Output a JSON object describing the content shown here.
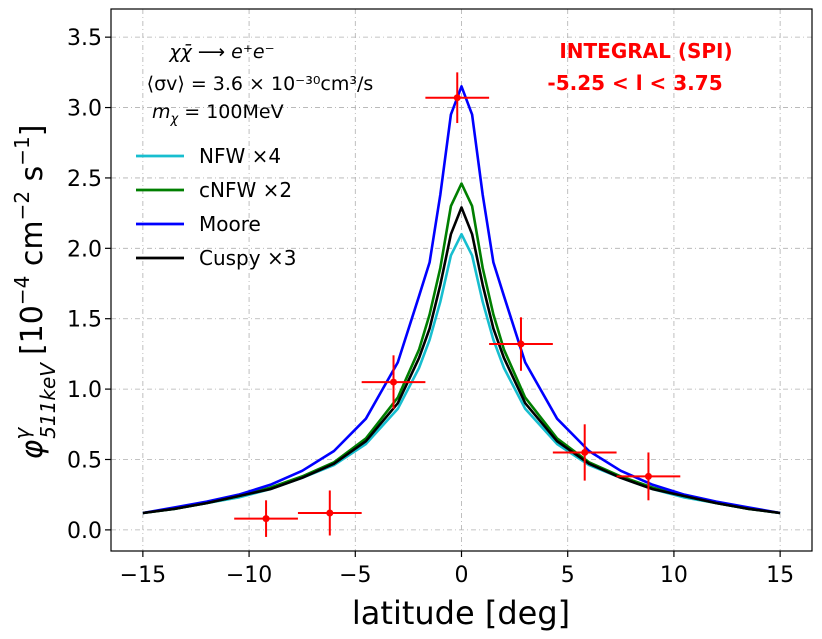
{
  "chart_data": {
    "type": "line",
    "title": "",
    "xlabel": "latitude [deg]",
    "ylabel": "φ^γ_511keV [10^-4 cm^-2 s^-1]",
    "ylabel_parts": {
      "symbol": "φ",
      "sup": "γ",
      "sub": "511keV",
      "unit": "[10",
      "exp1": "−4",
      "mid": " cm",
      "exp2": "−2",
      "mid2": " s",
      "exp3": "−1",
      "end": "]"
    },
    "xlim": [
      -16.5,
      16.5
    ],
    "ylim": [
      -0.15,
      3.7
    ],
    "grid": true,
    "xticks": [
      -15,
      -10,
      -5,
      0,
      5,
      10,
      15
    ],
    "yticks": [
      0.0,
      0.5,
      1.0,
      1.5,
      2.0,
      2.5,
      3.0,
      3.5
    ],
    "xtick_labels": [
      "−15",
      "−10",
      "−5",
      "0",
      "5",
      "10",
      "15"
    ],
    "ytick_labels": [
      "0.0",
      "0.5",
      "1.0",
      "1.5",
      "2.0",
      "2.5",
      "3.0",
      "3.5"
    ],
    "x": [
      -15,
      -13.5,
      -12,
      -10.5,
      -9,
      -7.5,
      -6,
      -4.5,
      -3,
      -2,
      -1.5,
      -1,
      -0.5,
      0,
      0.5,
      1,
      1.5,
      2,
      3,
      4.5,
      6,
      7.5,
      9,
      10.5,
      12,
      13.5,
      15
    ],
    "series": [
      {
        "name": "NFW ×4",
        "color": "#17becf",
        "values": [
          0.12,
          0.15,
          0.19,
          0.23,
          0.29,
          0.37,
          0.46,
          0.61,
          0.86,
          1.15,
          1.35,
          1.62,
          1.95,
          2.1,
          1.95,
          1.62,
          1.35,
          1.15,
          0.86,
          0.61,
          0.46,
          0.37,
          0.29,
          0.23,
          0.19,
          0.15,
          0.12
        ]
      },
      {
        "name": "cNFW ×2",
        "color": "#007f00",
        "values": [
          0.12,
          0.15,
          0.19,
          0.24,
          0.3,
          0.38,
          0.48,
          0.65,
          0.94,
          1.28,
          1.53,
          1.86,
          2.3,
          2.46,
          2.3,
          1.86,
          1.53,
          1.28,
          0.94,
          0.65,
          0.48,
          0.38,
          0.3,
          0.24,
          0.19,
          0.15,
          0.12
        ]
      },
      {
        "name": "Moore",
        "color": "#0000ff",
        "values": [
          0.12,
          0.16,
          0.2,
          0.25,
          0.32,
          0.42,
          0.56,
          0.79,
          1.19,
          1.66,
          1.9,
          2.38,
          2.95,
          3.15,
          2.95,
          2.38,
          1.9,
          1.66,
          1.19,
          0.79,
          0.56,
          0.42,
          0.32,
          0.25,
          0.2,
          0.16,
          0.12
        ]
      },
      {
        "name": "Cuspy ×3",
        "color": "#000000",
        "values": [
          0.12,
          0.15,
          0.19,
          0.24,
          0.29,
          0.37,
          0.47,
          0.63,
          0.9,
          1.22,
          1.43,
          1.74,
          2.1,
          2.29,
          2.1,
          1.74,
          1.43,
          1.22,
          0.9,
          0.63,
          0.47,
          0.37,
          0.29,
          0.24,
          0.19,
          0.15,
          0.12
        ]
      }
    ],
    "data_points": {
      "name": "INTEGRAL (SPI)",
      "color": "#ff0000",
      "points": [
        {
          "x": -9.2,
          "y": 0.08,
          "xerr": 1.5,
          "yerr": 0.13
        },
        {
          "x": -6.2,
          "y": 0.12,
          "xerr": 1.5,
          "yerr": 0.16
        },
        {
          "x": -3.2,
          "y": 1.05,
          "xerr": 1.5,
          "yerr": 0.19
        },
        {
          "x": -0.2,
          "y": 3.07,
          "xerr": 1.5,
          "yerr": 0.18
        },
        {
          "x": 2.8,
          "y": 1.32,
          "xerr": 1.5,
          "yerr": 0.19
        },
        {
          "x": 5.8,
          "y": 0.55,
          "xerr": 1.5,
          "yerr": 0.2
        },
        {
          "x": 8.8,
          "y": 0.38,
          "xerr": 1.5,
          "yerr": 0.17
        }
      ]
    },
    "annotations": {
      "process": "χχ̄ ⟶ e⁺e⁻",
      "cross_section": "⟨σv⟩ = 3.6 × 10⁻³⁰cm³/s",
      "mass": "m",
      "mass_sub": "χ",
      "mass_value": " = 100MeV",
      "instrument": "INTEGRAL (SPI)",
      "range": "-5.25  <  l  <  3.75"
    },
    "legend_position": "upper-left"
  }
}
